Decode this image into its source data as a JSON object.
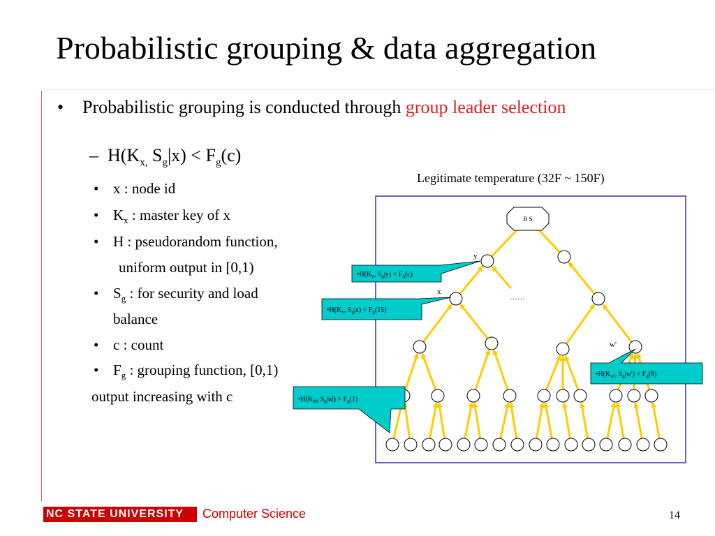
{
  "title": "Probabilistic grouping & data aggregation",
  "bullet1": {
    "text": "Probabilistic grouping is conducted through ",
    "highlight": "group leader selection"
  },
  "subbullet": {
    "dash": "–",
    "formula_parts": [
      "H(K",
      "x,",
      " S",
      "g",
      "|x) < F",
      "g",
      "(c)"
    ]
  },
  "items": [
    {
      "pre": "x :   node id",
      "sub": "",
      "post": ""
    },
    {
      "pre": "K",
      "sub": "x",
      "post": " : master key of x"
    },
    {
      "pre": "H :  pseudorandom function,",
      "sub": "",
      "post": ""
    },
    {
      "pre": "S",
      "sub": "g",
      "post": " : for security and load"
    },
    {
      "pre": "c :   count",
      "sub": "",
      "post": ""
    },
    {
      "pre": "F",
      "sub": "g",
      "post": " : grouping function, [0,1)"
    }
  ],
  "continuations": [
    "uniform output in [0,1)",
    "balance",
    "output increasing with c"
  ],
  "diagram": {
    "caption": "Legitimate temperature (32F ~ 150F)",
    "bs_label": "B S",
    "labels": {
      "y": "y",
      "x": "x",
      "w": "w'",
      "ellipsis": "……"
    },
    "callouts": [
      {
        "parts": [
          "•H(K",
          "y",
          ", S",
          "g",
          "|y) < F",
          "g",
          "(c)"
        ]
      },
      {
        "parts": [
          "•H(K",
          "x",
          ", S",
          "g",
          "|x) < F",
          "g",
          "(15)"
        ]
      },
      {
        "parts": [
          "•H(K",
          "w'",
          ", S",
          "g",
          "|w') < F",
          "g",
          "(8)"
        ]
      },
      {
        "parts": [
          "•H(K",
          "id",
          ", S",
          "g",
          "|id) > F",
          "g",
          "(1)"
        ]
      }
    ],
    "colors": {
      "edge": "#ffcc00",
      "border": "#3333aa",
      "callout": "#00cccc"
    }
  },
  "footer": {
    "university": "NC STATE UNIVERSITY",
    "dept": "Computer Science",
    "page": "14"
  }
}
